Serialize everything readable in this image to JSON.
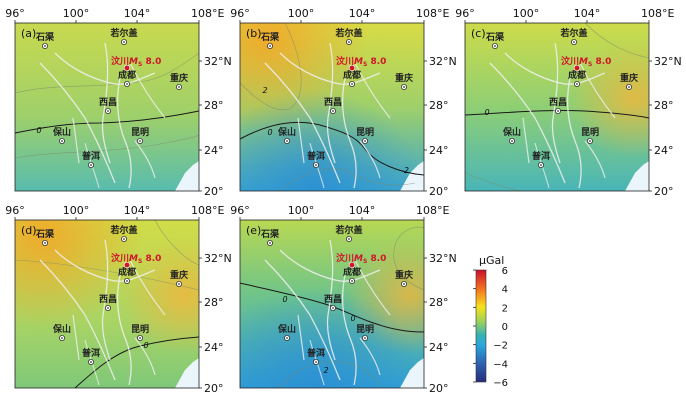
{
  "lon_ticks": [
    "96°",
    "100°",
    "104°",
    "108°E"
  ],
  "lat_ticks": [
    "32°N",
    "28°",
    "24°",
    "20°"
  ],
  "panels": [
    {
      "label": "(a)",
      "contour_labels": [
        "0"
      ]
    },
    {
      "label": "(b)",
      "contour_labels": [
        "2",
        "0",
        "-2"
      ]
    },
    {
      "label": "(c)",
      "contour_labels": [
        "0"
      ]
    },
    {
      "label": "(d)",
      "contour_labels": [
        "0"
      ]
    },
    {
      "label": "(e)",
      "contour_labels": [
        "0",
        "0",
        "2"
      ]
    }
  ],
  "cities": {
    "shiqu": "石渠",
    "zoige": "若尔盖",
    "chengdu": "成都",
    "chongqing": "重庆",
    "xichang": "西昌",
    "baoshan": "保山",
    "kunming": "昆明",
    "puer": "普洱"
  },
  "epicenter": {
    "prefix": "汶川",
    "mag_symbol": "M",
    "mag_sub": "S",
    "mag_value": "8.0"
  },
  "colorbar": {
    "title": "μGal",
    "ticks": [
      "6",
      "4",
      "2",
      "0",
      "−2",
      "−4",
      "−6"
    ],
    "min": -6,
    "max": 6,
    "colors": {
      "c6": "#c8102e",
      "c4": "#f4731f",
      "c2": "#f6e21c",
      "c1": "#b9d844",
      "c0": "#7cc779",
      "cm1": "#36b2b2",
      "cm2": "#2ba7dd",
      "cm4": "#2e64b2",
      "cm6": "#272b7c"
    }
  }
}
